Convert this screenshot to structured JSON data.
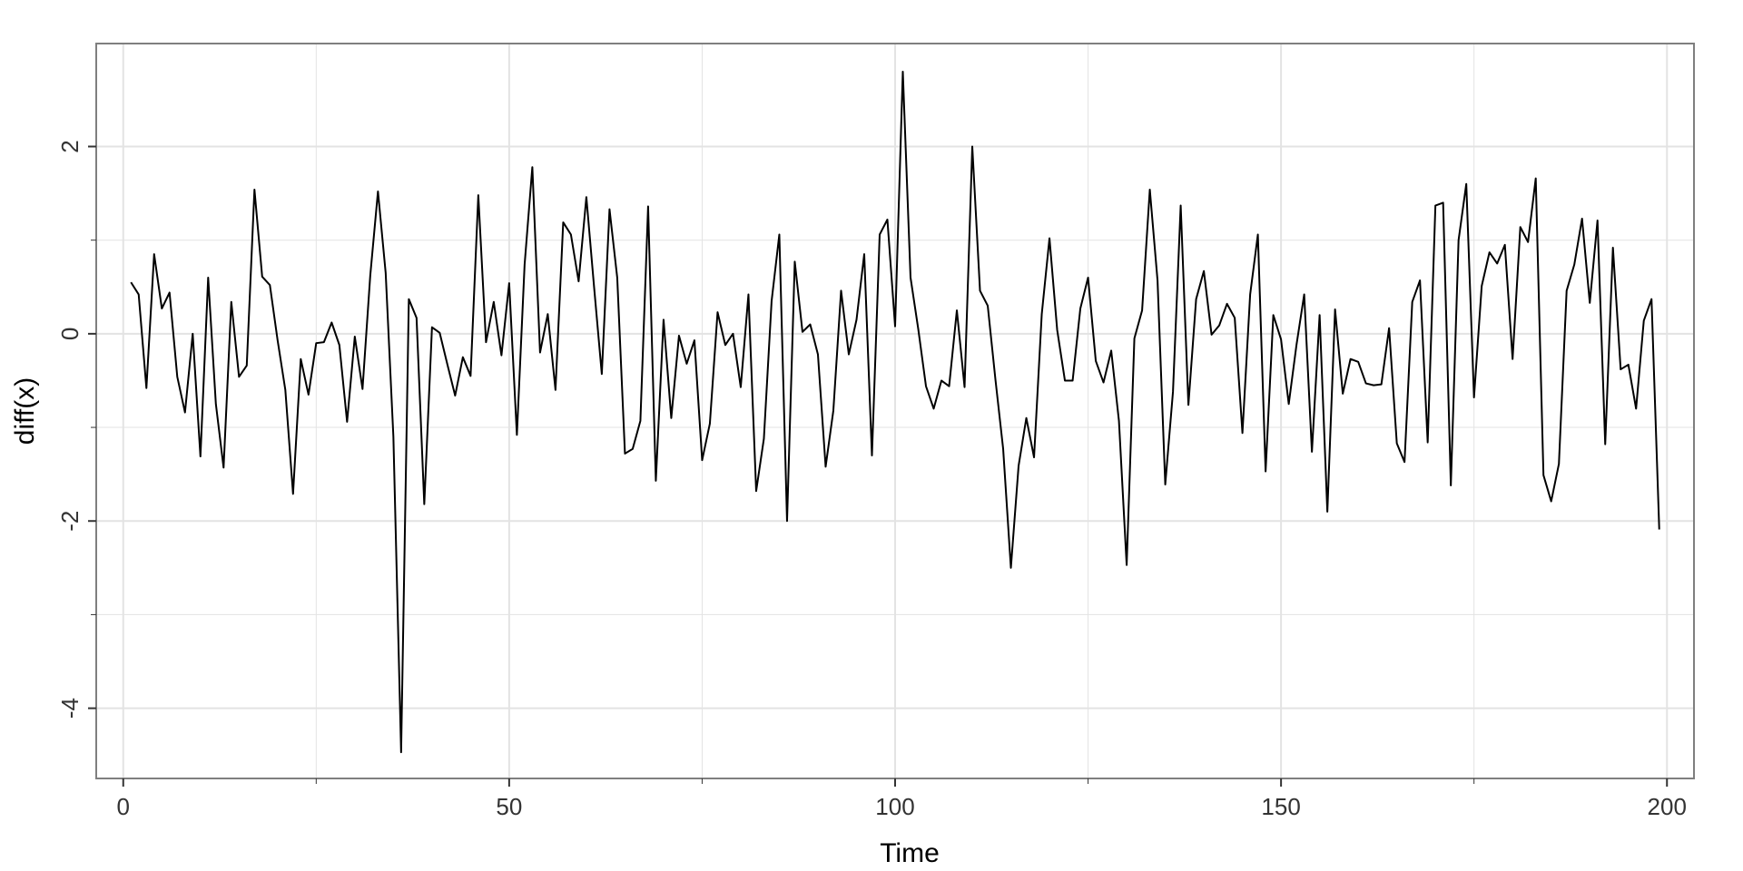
{
  "chart_data": {
    "type": "line",
    "title": "",
    "xlabel": "Time",
    "ylabel": "diff(x)",
    "xlim": [
      -3.5,
      203.5
    ],
    "ylim": [
      -4.75,
      3.1
    ],
    "x_ticks": [
      0,
      50,
      100,
      150,
      200
    ],
    "x_tick_labels": [
      "0",
      "50",
      "100",
      "150",
      "200"
    ],
    "y_ticks": [
      -4,
      -2,
      0,
      2
    ],
    "y_tick_labels": [
      "-4",
      "-2",
      "0",
      "2"
    ],
    "x_minor_ticks": [
      25,
      75,
      125,
      175
    ],
    "y_minor_ticks": [
      -3,
      -1,
      1
    ],
    "grid": true,
    "line_color": "#000000",
    "grid_color": "#e3e3e3",
    "panel_border_color": "#7f7f7f",
    "series": [
      {
        "x": [
          1,
          2,
          3,
          4,
          5,
          6,
          7,
          8,
          9,
          10,
          11,
          12,
          13,
          14,
          15,
          16,
          17,
          18,
          19,
          20,
          21,
          22,
          23,
          24,
          25,
          26,
          27,
          28,
          29,
          30,
          31,
          32,
          33,
          34,
          35,
          36,
          37,
          38,
          39,
          40,
          41,
          42,
          43,
          44,
          45,
          46,
          47,
          48,
          49,
          50,
          51,
          52,
          53,
          54,
          55,
          56,
          57,
          58,
          59,
          60,
          61,
          62,
          63,
          64,
          65,
          66,
          67,
          68,
          69,
          70,
          71,
          72,
          73,
          74,
          75,
          76,
          77,
          78,
          79,
          80,
          81,
          82,
          83,
          84,
          85,
          86,
          87,
          88,
          89,
          90,
          91,
          92,
          93,
          94,
          95,
          96,
          97,
          98,
          99,
          100,
          101,
          102,
          103,
          104,
          105,
          106,
          107,
          108,
          109,
          110,
          111,
          112,
          113,
          114,
          115,
          116,
          117,
          118,
          119,
          120,
          121,
          122,
          123,
          124,
          125,
          126,
          127,
          128,
          129,
          130,
          131,
          132,
          133,
          134,
          135,
          136,
          137,
          138,
          139,
          140,
          141,
          142,
          143,
          144,
          145,
          146,
          147,
          148,
          149,
          150,
          151,
          152,
          153,
          154,
          155,
          156,
          157,
          158,
          159,
          160,
          161,
          162,
          163,
          164,
          165,
          166,
          167,
          168,
          169,
          170,
          171,
          172,
          173,
          174,
          175,
          176,
          177,
          178,
          179,
          180,
          181,
          182,
          183,
          184,
          185,
          186,
          187,
          188,
          189,
          190,
          191,
          192,
          193,
          194,
          195,
          196,
          197,
          198,
          199
        ],
        "values": [
          0.55,
          0.42,
          -0.58,
          0.85,
          0.27,
          0.44,
          -0.46,
          -0.84,
          0.0,
          -1.31,
          0.6,
          -0.75,
          -1.43,
          0.34,
          -0.46,
          -0.34,
          1.54,
          0.61,
          0.52,
          -0.07,
          -0.6,
          -1.71,
          -0.27,
          -0.65,
          -0.1,
          -0.09,
          0.12,
          -0.12,
          -0.94,
          -0.03,
          -0.59,
          0.62,
          1.52,
          0.65,
          -1.1,
          -4.47,
          0.37,
          0.17,
          -1.82,
          0.07,
          0.01,
          -0.33,
          -0.66,
          -0.25,
          -0.45,
          1.48,
          -0.09,
          0.34,
          -0.23,
          0.54,
          -1.08,
          0.74,
          1.78,
          -0.2,
          0.21,
          -0.6,
          1.19,
          1.06,
          0.56,
          1.46,
          0.5,
          -0.43,
          1.33,
          0.6,
          -1.28,
          -1.23,
          -0.93,
          1.36,
          -1.57,
          0.15,
          -0.9,
          -0.02,
          -0.32,
          -0.07,
          -1.35,
          -0.96,
          0.23,
          -0.12,
          0.0,
          -0.57,
          0.42,
          -1.68,
          -1.12,
          0.35,
          1.06,
          -2.0,
          0.77,
          0.02,
          0.1,
          -0.22,
          -1.42,
          -0.82,
          0.46,
          -0.22,
          0.15,
          0.85,
          -1.3,
          1.06,
          1.22,
          0.08,
          2.8,
          0.6,
          0.05,
          -0.56,
          -0.8,
          -0.5,
          -0.56,
          0.25,
          -0.57,
          2.0,
          0.46,
          0.3,
          -0.49,
          -1.23,
          -2.5,
          -1.41,
          -0.9,
          -1.32,
          0.21,
          1.02,
          0.04,
          -0.5,
          -0.5,
          0.27,
          0.6,
          -0.29,
          -0.52,
          -0.18,
          -0.93,
          -2.47,
          -0.05,
          0.25,
          1.54,
          0.57,
          -1.61,
          -0.62,
          1.37,
          -0.76,
          0.37,
          0.67,
          -0.01,
          0.09,
          0.32,
          0.17,
          -1.06,
          0.42,
          1.06,
          -1.47,
          0.2,
          -0.06,
          -0.75,
          -0.12,
          0.42,
          -1.26,
          0.2,
          -1.9,
          0.26,
          -0.64,
          -0.27,
          -0.3,
          -0.53,
          -0.55,
          -0.54,
          0.06,
          -1.17,
          -1.37,
          0.34,
          0.57,
          -1.16,
          1.37,
          1.4,
          -1.62,
          1.0,
          1.6,
          -0.68,
          0.51,
          0.87,
          0.75,
          0.95,
          -0.27,
          1.14,
          0.98,
          1.66,
          -1.51,
          -1.79,
          -1.39,
          0.46,
          0.74,
          1.23,
          0.33,
          1.21,
          -1.18,
          0.92,
          -0.38,
          -0.33,
          -0.8,
          0.14,
          0.37,
          -2.09
        ]
      }
    ]
  }
}
